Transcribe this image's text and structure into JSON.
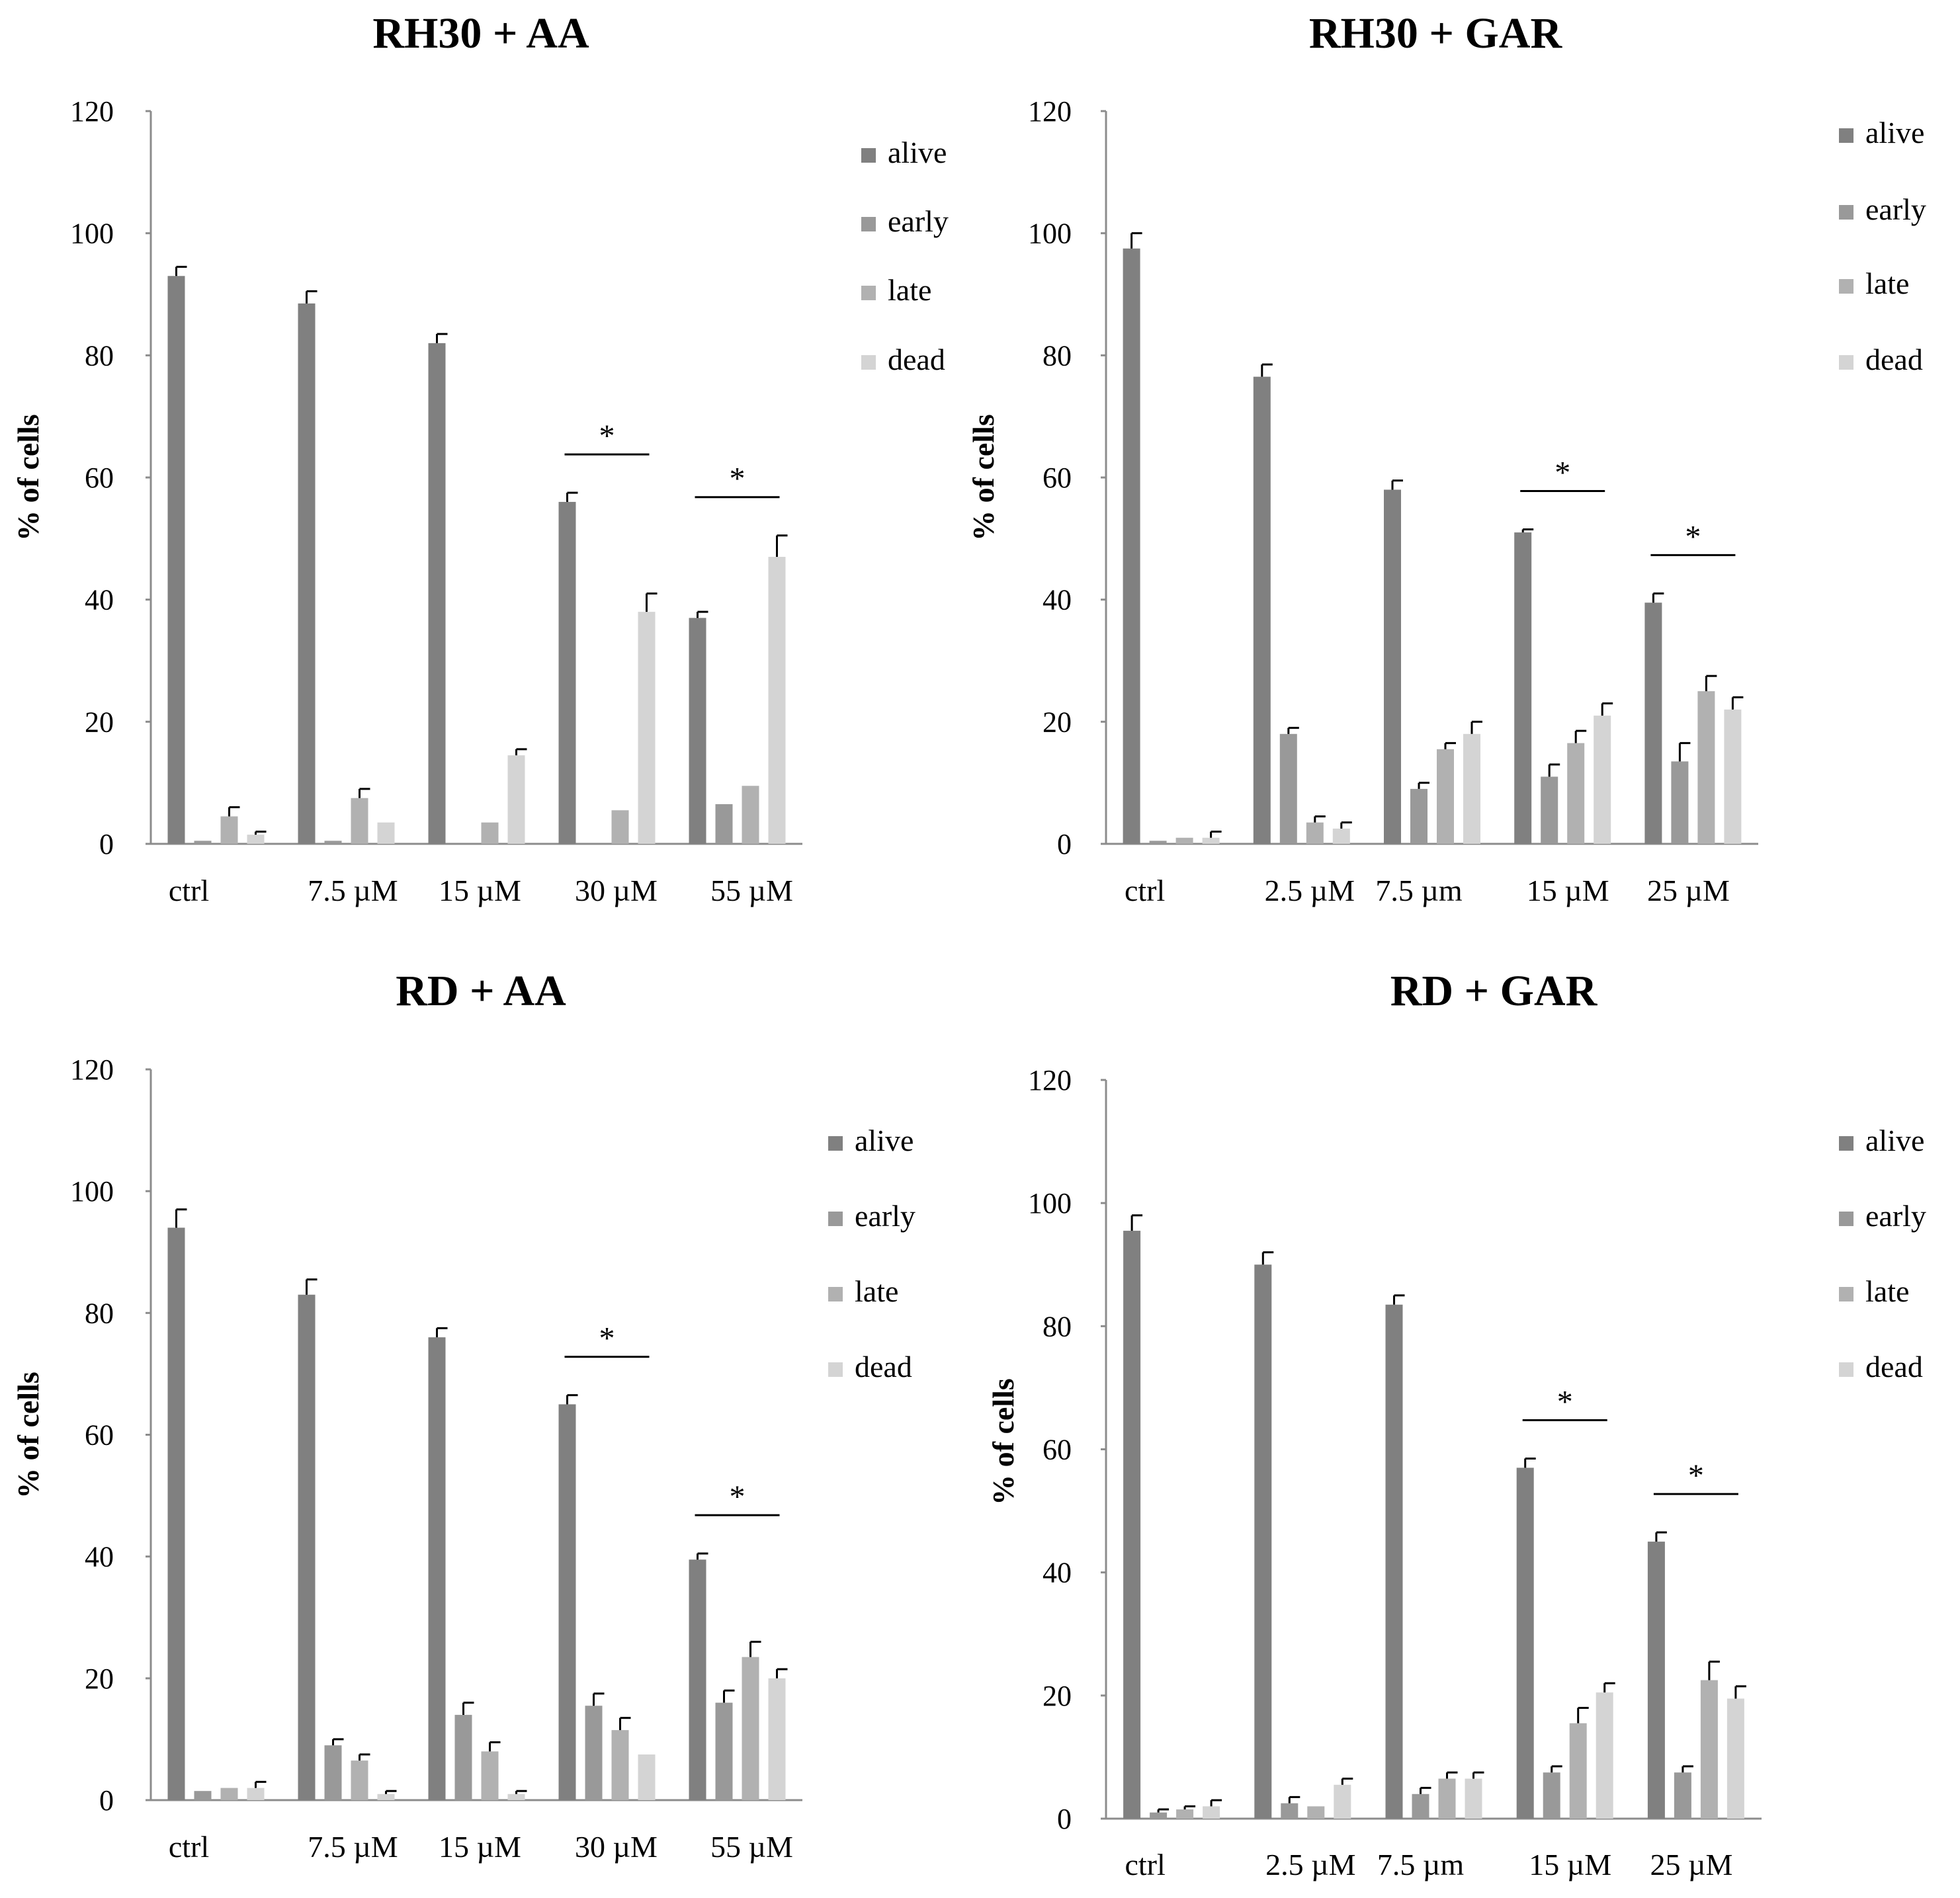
{
  "colors": {
    "alive": "#808080",
    "early": "#999999",
    "late": "#b1b1b1",
    "dead": "#d4d4d4",
    "axis": "#8c8c8c",
    "text": "#000000"
  },
  "chart_data": [
    {
      "type": "bar",
      "title": "RH30 + AA",
      "ylabel": "% of cells",
      "xlabel": "",
      "ylim": [
        0,
        120
      ],
      "yticks": [
        "0",
        "20",
        "40",
        "60",
        "80",
        "100",
        "120"
      ],
      "categories": [
        "ctrl",
        "7.5 µM",
        "15 µM",
        "30 µM",
        "55 µM"
      ],
      "series": [
        {
          "name": "alive",
          "values": [
            93,
            88.5,
            82,
            56,
            37
          ],
          "errors": [
            1.5,
            2,
            1.5,
            1.5,
            1
          ]
        },
        {
          "name": "early",
          "values": [
            0.5,
            0.5,
            0,
            0,
            6.5
          ],
          "errors": [
            0,
            0,
            0,
            0,
            0
          ]
        },
        {
          "name": "late",
          "values": [
            4.5,
            7.5,
            3.5,
            5.5,
            9.5
          ],
          "errors": [
            1.5,
            1.5,
            0,
            0,
            0
          ]
        },
        {
          "name": "dead",
          "values": [
            1.5,
            3.5,
            14.5,
            38,
            47
          ],
          "errors": [
            0.5,
            0,
            1,
            3,
            3.5
          ]
        }
      ],
      "significance": [
        {
          "category": "30 µM",
          "label": "*"
        },
        {
          "category": "55 µM",
          "label": "*"
        }
      ],
      "legend": "right"
    },
    {
      "type": "bar",
      "title": "RH30 + GAR",
      "ylabel": "% of cells",
      "xlabel": "",
      "ylim": [
        0,
        120
      ],
      "yticks": [
        "0",
        "20",
        "40",
        "60",
        "80",
        "100",
        "120"
      ],
      "categories": [
        "ctrl",
        "2.5 µM",
        "7.5  µm",
        "15  µM",
        "25  µM"
      ],
      "series": [
        {
          "name": "alive",
          "values": [
            97.5,
            76.5,
            58,
            51,
            39.5
          ],
          "errors": [
            2.5,
            2,
            1.5,
            0.5,
            1.5
          ]
        },
        {
          "name": "early",
          "values": [
            0.5,
            18,
            9,
            11,
            13.5
          ],
          "errors": [
            0,
            1,
            1,
            2,
            3
          ]
        },
        {
          "name": "late",
          "values": [
            1,
            3.5,
            15.5,
            16.5,
            25
          ],
          "errors": [
            0,
            1,
            1,
            2,
            2.5
          ]
        },
        {
          "name": "dead",
          "values": [
            1,
            2.5,
            18,
            21,
            22
          ],
          "errors": [
            1,
            1,
            2,
            2,
            2
          ]
        }
      ],
      "significance": [
        {
          "category": "15  µM",
          "label": "*"
        },
        {
          "category": "25  µM",
          "label": "*"
        }
      ],
      "legend": "top-right"
    },
    {
      "type": "bar",
      "title": "RD + AA",
      "ylabel": "% of cells",
      "xlabel": "",
      "ylim": [
        0,
        120
      ],
      "yticks": [
        "0",
        "20",
        "40",
        "60",
        "80",
        "100",
        "120"
      ],
      "categories": [
        "ctrl",
        "7.5 µM",
        "15 µM",
        "30 µM",
        "55 µM"
      ],
      "series": [
        {
          "name": "alive",
          "values": [
            94,
            83,
            76,
            65,
            39.5
          ],
          "errors": [
            3,
            2.5,
            1.5,
            1.5,
            1
          ]
        },
        {
          "name": "early",
          "values": [
            1.5,
            9,
            14,
            15.5,
            16
          ],
          "errors": [
            0,
            1,
            2,
            2,
            2
          ]
        },
        {
          "name": "late",
          "values": [
            2,
            6.5,
            8,
            11.5,
            23.5
          ],
          "errors": [
            0,
            1,
            1.5,
            2,
            2.5
          ]
        },
        {
          "name": "dead",
          "values": [
            2,
            1,
            1,
            7.5,
            20
          ],
          "errors": [
            1,
            0.5,
            0.5,
            0,
            1.5
          ]
        }
      ],
      "significance": [
        {
          "category": "30 µM",
          "label": "*"
        },
        {
          "category": "55 µM",
          "label": "*"
        }
      ],
      "legend": "right"
    },
    {
      "type": "bar",
      "title": "RD + GAR",
      "ylabel": "% of cells",
      "xlabel": "",
      "ylim": [
        0,
        120
      ],
      "yticks": [
        "0",
        "20",
        "40",
        "60",
        "80",
        "100",
        "120"
      ],
      "categories": [
        "ctrl",
        "2.5 µM",
        "7.5  µm",
        "15  µM",
        "25  µM"
      ],
      "series": [
        {
          "name": "alive",
          "values": [
            95.5,
            90,
            83.5,
            57,
            45
          ],
          "errors": [
            2.5,
            2,
            1.5,
            1.5,
            1.5
          ]
        },
        {
          "name": "early",
          "values": [
            1,
            2.5,
            4,
            7.5,
            7.5
          ],
          "errors": [
            0.5,
            1,
            1,
            1,
            1
          ]
        },
        {
          "name": "late",
          "values": [
            1.5,
            2,
            6.5,
            15.5,
            22.5
          ],
          "errors": [
            0.5,
            0,
            1,
            2.5,
            3
          ]
        },
        {
          "name": "dead",
          "values": [
            2,
            5.5,
            6.5,
            20.5,
            19.5
          ],
          "errors": [
            1,
            1,
            1,
            1.5,
            2
          ]
        }
      ],
      "significance": [
        {
          "category": "15  µM",
          "label": "*"
        },
        {
          "category": "25  µM",
          "label": "*"
        }
      ],
      "legend": "top-right"
    }
  ]
}
